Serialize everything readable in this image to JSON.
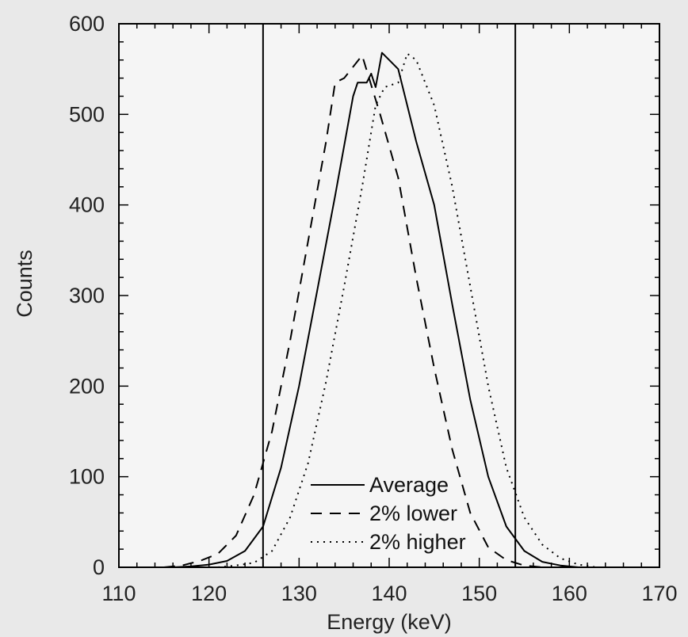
{
  "chart_data": {
    "type": "line",
    "title": "",
    "xlabel": "Energy (keV)",
    "ylabel": "Counts",
    "xlim": [
      110,
      170
    ],
    "ylim": [
      0,
      600
    ],
    "x_ticks": [
      "110",
      "120",
      "130",
      "140",
      "150",
      "160",
      "170"
    ],
    "y_ticks": [
      "0",
      "100",
      "200",
      "300",
      "400",
      "500",
      "600"
    ],
    "grid": false,
    "legend_position": "bottom-center",
    "window_lines": [
      126,
      154
    ],
    "colors": {
      "background": "#e9e9e9",
      "plot_area": "#f5f5f5",
      "line": "#000000"
    },
    "series": [
      {
        "name": "Average",
        "style": "solid",
        "points": [
          [
            116,
            0
          ],
          [
            118,
            1
          ],
          [
            120,
            3
          ],
          [
            122,
            7
          ],
          [
            124,
            18
          ],
          [
            126,
            45
          ],
          [
            128,
            110
          ],
          [
            130,
            200
          ],
          [
            132,
            305
          ],
          [
            134,
            410
          ],
          [
            136,
            520
          ],
          [
            136.5,
            535
          ],
          [
            137.5,
            535
          ],
          [
            138,
            545
          ],
          [
            138.5,
            530
          ],
          [
            139.2,
            568
          ],
          [
            140,
            560
          ],
          [
            141,
            550
          ],
          [
            143,
            470
          ],
          [
            145,
            400
          ],
          [
            147,
            290
          ],
          [
            149,
            185
          ],
          [
            151,
            100
          ],
          [
            153,
            45
          ],
          [
            155,
            18
          ],
          [
            157,
            6
          ],
          [
            159,
            2
          ],
          [
            161,
            0
          ]
        ]
      },
      {
        "name": "2% lower",
        "style": "dashed",
        "points": [
          [
            115,
            0
          ],
          [
            117,
            2
          ],
          [
            119,
            7
          ],
          [
            121,
            15
          ],
          [
            123,
            35
          ],
          [
            125,
            80
          ],
          [
            127,
            150
          ],
          [
            129,
            250
          ],
          [
            131,
            360
          ],
          [
            133,
            470
          ],
          [
            134,
            535
          ],
          [
            135,
            540
          ],
          [
            137,
            565
          ],
          [
            139,
            500
          ],
          [
            141,
            430
          ],
          [
            143,
            320
          ],
          [
            145,
            220
          ],
          [
            147,
            130
          ],
          [
            149,
            60
          ],
          [
            151,
            22
          ],
          [
            153,
            8
          ],
          [
            155,
            2
          ],
          [
            157,
            0
          ]
        ]
      },
      {
        "name": "2% higher",
        "style": "dotted",
        "points": [
          [
            121,
            0
          ],
          [
            123,
            2
          ],
          [
            125,
            5
          ],
          [
            127,
            18
          ],
          [
            129,
            55
          ],
          [
            131,
            115
          ],
          [
            133,
            205
          ],
          [
            135,
            310
          ],
          [
            137,
            420
          ],
          [
            138.5,
            510
          ],
          [
            139.5,
            530
          ],
          [
            141,
            535
          ],
          [
            142,
            567
          ],
          [
            143,
            560
          ],
          [
            145,
            510
          ],
          [
            147,
            420
          ],
          [
            149,
            310
          ],
          [
            151,
            200
          ],
          [
            153,
            110
          ],
          [
            155,
            55
          ],
          [
            157,
            25
          ],
          [
            159,
            10
          ],
          [
            161,
            3
          ],
          [
            163,
            0
          ]
        ]
      }
    ]
  }
}
